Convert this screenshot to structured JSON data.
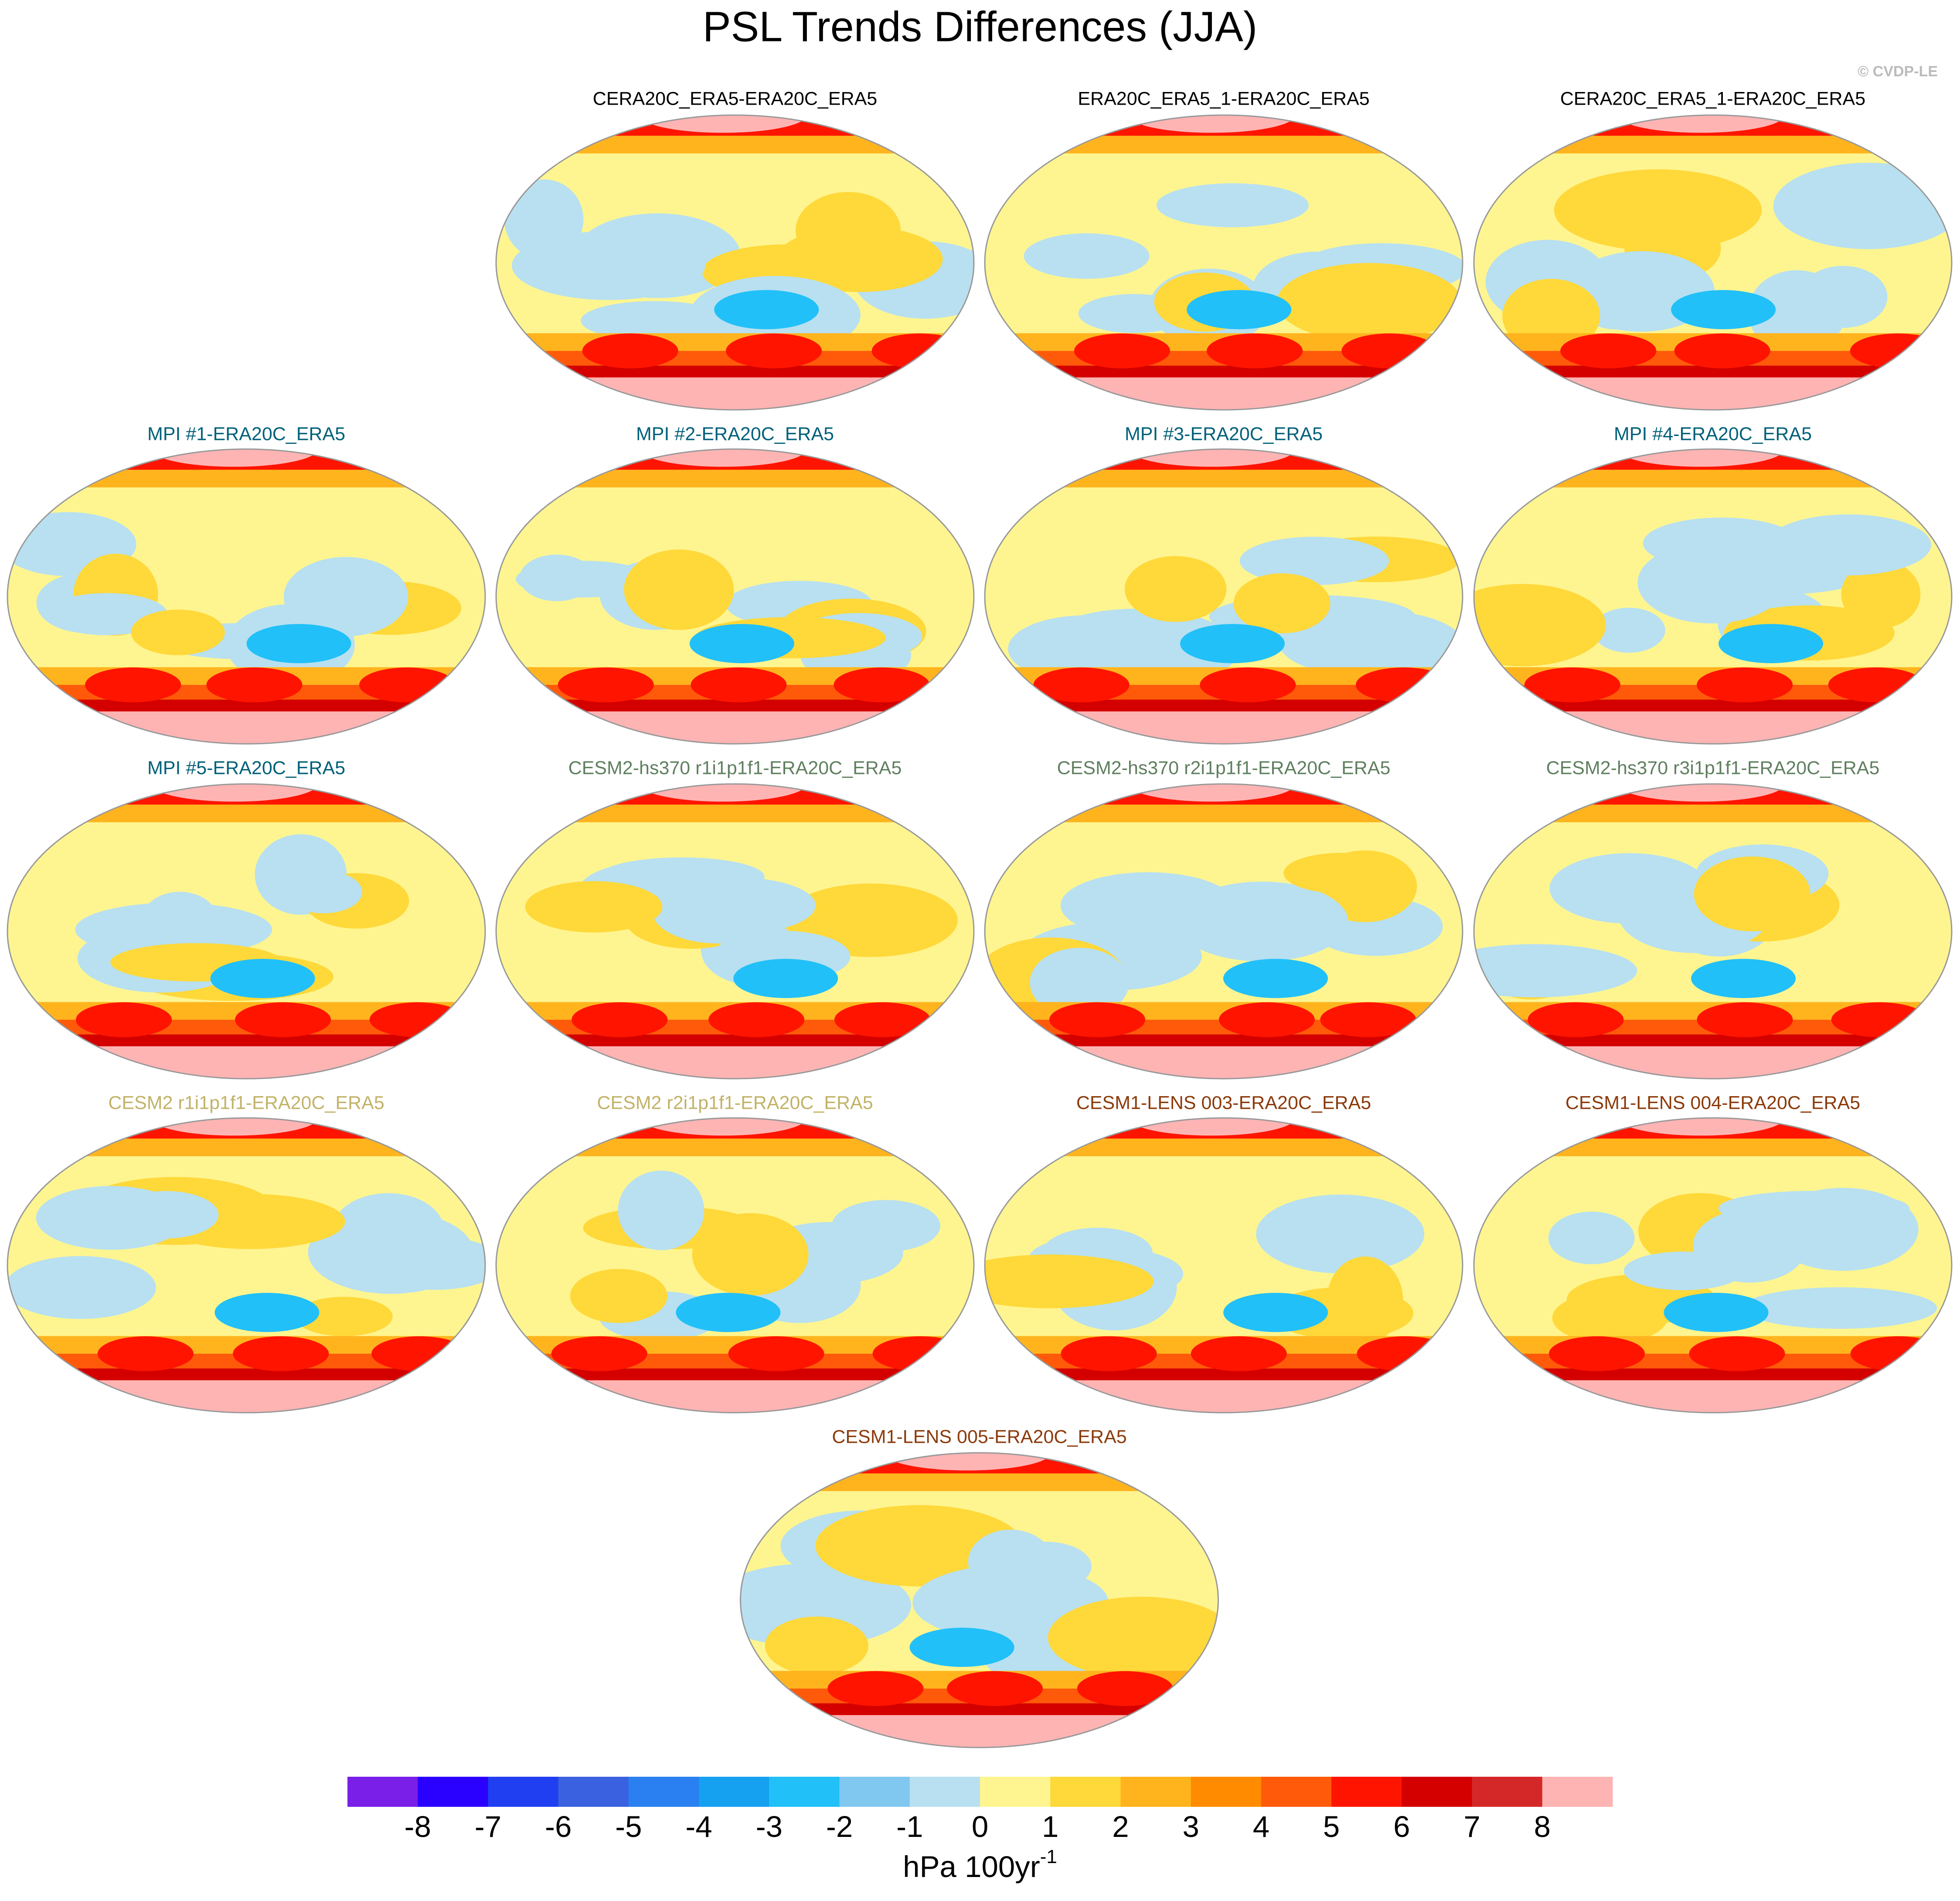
{
  "title": "PSL Trends Differences (JJA)",
  "credit": "© CVDP-LE",
  "panels": [
    {
      "title": "CERA20C_ERA5-ERA20C_ERA5",
      "color": "#000000"
    },
    {
      "title": "ERA20C_ERA5_1-ERA20C_ERA5",
      "color": "#000000"
    },
    {
      "title": "CERA20C_ERA5_1-ERA20C_ERA5",
      "color": "#000000"
    },
    {
      "title": "MPI #1-ERA20C_ERA5",
      "color": "#00607a"
    },
    {
      "title": "MPI #2-ERA20C_ERA5",
      "color": "#00607a"
    },
    {
      "title": "MPI #3-ERA20C_ERA5",
      "color": "#00607a"
    },
    {
      "title": "MPI #4-ERA20C_ERA5",
      "color": "#00607a"
    },
    {
      "title": "MPI #5-ERA20C_ERA5",
      "color": "#00607a"
    },
    {
      "title": "CESM2-hs370 r1i1p1f1-ERA20C_ERA5",
      "color": "#5f7f5f"
    },
    {
      "title": "CESM2-hs370 r2i1p1f1-ERA20C_ERA5",
      "color": "#5f7f5f"
    },
    {
      "title": "CESM2-hs370 r3i1p1f1-ERA20C_ERA5",
      "color": "#5f7f5f"
    },
    {
      "title": "CESM2 r1i1p1f1-ERA20C_ERA5",
      "color": "#c2b268"
    },
    {
      "title": "CESM2 r2i1p1f1-ERA20C_ERA5",
      "color": "#c2b268"
    },
    {
      "title": "CESM1-LENS 003-ERA20C_ERA5",
      "color": "#8b3a0a"
    },
    {
      "title": "CESM1-LENS 004-ERA20C_ERA5",
      "color": "#8b3a0a"
    },
    {
      "title": "CESM1-LENS 005-ERA20C_ERA5",
      "color": "#8b3a0a"
    }
  ],
  "colorbar": {
    "levels": [
      -8,
      -7,
      -6,
      -5,
      -4,
      -3,
      -2,
      -1,
      0,
      1,
      2,
      3,
      4,
      5,
      6,
      7,
      8
    ],
    "colors": [
      "#7a1fe8",
      "#2a00ff",
      "#1f3ff0",
      "#3a62e0",
      "#2a80f0",
      "#16a0f0",
      "#22c0f8",
      "#80c8f0",
      "#b8e0f0",
      "#fff590",
      "#ffd83a",
      "#ffb41e",
      "#ff8c00",
      "#ff5a0a",
      "#ff1400",
      "#d40000",
      "#d42828",
      "#ffb4b4"
    ],
    "units": "hPa 100yr",
    "units_sup": "-1"
  }
}
